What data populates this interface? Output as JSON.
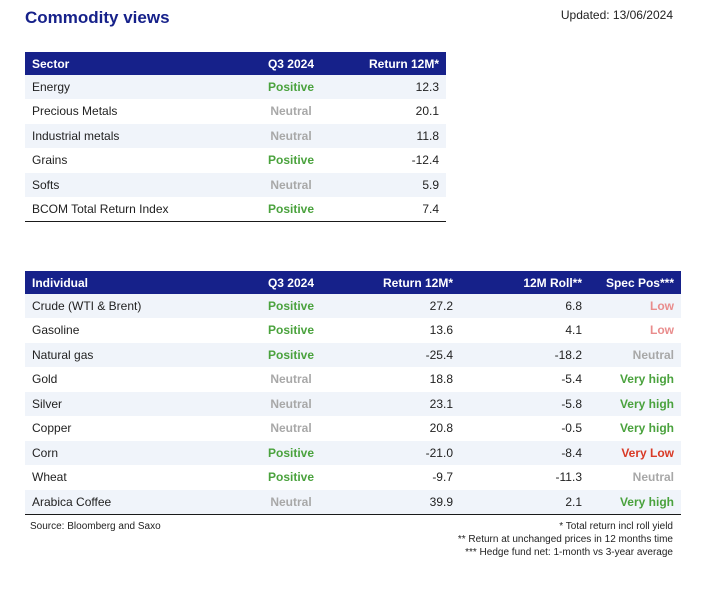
{
  "title": "Commodity views",
  "updated": "Updated: 13/06/2024",
  "sector_table": {
    "headers": [
      "Sector",
      "Q3 2024",
      "Return 12M*"
    ],
    "rows": [
      {
        "name": "Energy",
        "view": "Positive",
        "return": "12.3"
      },
      {
        "name": "Precious Metals",
        "view": "Neutral",
        "return": "20.1"
      },
      {
        "name": "Industrial metals",
        "view": "Neutral",
        "return": "11.8"
      },
      {
        "name": "Grains",
        "view": "Positive",
        "return": "-12.4"
      },
      {
        "name": "Softs",
        "view": "Neutral",
        "return": "5.9"
      },
      {
        "name": "BCOM Total Return Index",
        "view": "Positive",
        "return": "7.4"
      }
    ]
  },
  "individual_table": {
    "headers": [
      "Individual",
      "Q3 2024",
      "Return 12M*",
      "12M Roll**",
      "Spec Pos***"
    ],
    "rows": [
      {
        "name": "Crude (WTI & Brent)",
        "view": "Positive",
        "return": "27.2",
        "roll": "6.8",
        "spec": "Low"
      },
      {
        "name": "Gasoline",
        "view": "Positive",
        "return": "13.6",
        "roll": "4.1",
        "spec": "Low"
      },
      {
        "name": "Natural gas",
        "view": "Positive",
        "return": "-25.4",
        "roll": "-18.2",
        "spec": "Neutral"
      },
      {
        "name": "Gold",
        "view": "Neutral",
        "return": "18.8",
        "roll": "-5.4",
        "spec": "Very high"
      },
      {
        "name": "Silver",
        "view": "Neutral",
        "return": "23.1",
        "roll": "-5.8",
        "spec": "Very high"
      },
      {
        "name": "Copper",
        "view": "Neutral",
        "return": "20.8",
        "roll": "-0.5",
        "spec": "Very high"
      },
      {
        "name": "Corn",
        "view": "Positive",
        "return": "-21.0",
        "roll": "-8.4",
        "spec": "Very Low"
      },
      {
        "name": "Wheat",
        "view": "Positive",
        "return": "-9.7",
        "roll": "-11.3",
        "spec": "Neutral"
      },
      {
        "name": "Arabica Coffee",
        "view": "Neutral",
        "return": "39.9",
        "roll": "2.1",
        "spec": "Very high"
      }
    ]
  },
  "source": "Source: Bloomberg and Saxo",
  "footnotes": [
    "* Total return incl roll yield",
    "** Return at unchanged prices in 12 months time",
    "*** Hedge fund net: 1-month vs 3-year average"
  ],
  "colors": {
    "header_bg": "#16218a",
    "title": "#16218a",
    "positive": "#4aa23d",
    "neutral": "#a8a8a8",
    "low": "#e98c8c",
    "very_low": "#d93a26",
    "very_high": "#4aa23d",
    "row_shade": "#f0f4fa"
  }
}
